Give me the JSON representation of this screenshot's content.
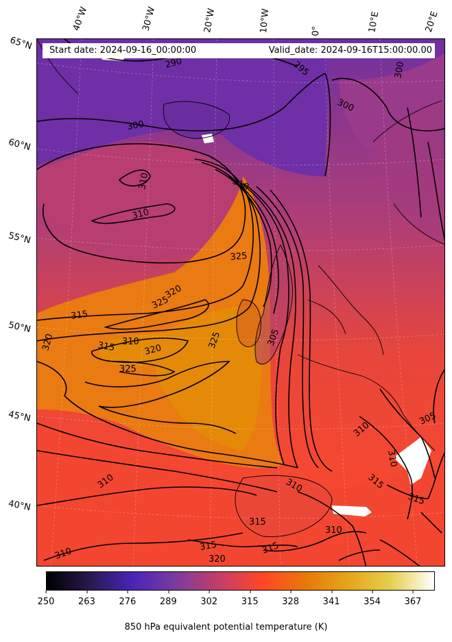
{
  "header": {
    "start_date": "Start date: 2024-09-16_00:00:00",
    "valid_date": "Valid_date: 2024-09-16T15:00:00.00"
  },
  "longitude_labels": [
    "40°W",
    "30°W",
    "20°W",
    "10°W",
    "0°",
    "10°E",
    "20°E"
  ],
  "latitude_labels": [
    "65°N",
    "60°N",
    "55°N",
    "50°N",
    "45°N",
    "40°N"
  ],
  "contour_labels": [
    "290",
    "295",
    "300",
    "300",
    "300",
    "310",
    "310",
    "310",
    "315",
    "315",
    "320",
    "320",
    "320",
    "325",
    "325",
    "325",
    "325",
    "310",
    "305",
    "305",
    "310",
    "310",
    "310",
    "310",
    "315",
    "315",
    "315",
    "315",
    "310",
    "320",
    "315",
    "310"
  ],
  "colorbar": {
    "ticks": [
      "250",
      "263",
      "276",
      "289",
      "302",
      "315",
      "328",
      "341",
      "354",
      "367"
    ],
    "min": 250,
    "max": 374,
    "label": "850 hPa equivalent potential temperature (K)",
    "colormap": "CMRmap",
    "colors": [
      "#000000",
      "#261a4d",
      "#4b24b8",
      "#7a3c9e",
      "#c23e6a",
      "#ff4626",
      "#e8780a",
      "#e5a51a",
      "#e6cf50",
      "#ffffff"
    ]
  }
}
